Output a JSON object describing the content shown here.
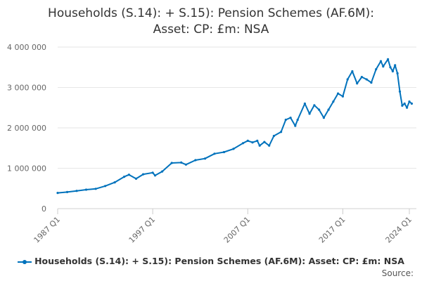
{
  "chart_data": {
    "type": "line",
    "title_lines": [
      "Households (S.14): + S.15): Pension Schemes (AF.6M):",
      "Asset: CP: £m: NSA"
    ],
    "xlabel": "",
    "ylabel": "",
    "x_ticks": [
      "1987 Q1",
      "1997 Q1",
      "2007 Q1",
      "2017 Q1",
      "2024 Q1"
    ],
    "y_ticks": [
      "0",
      "1 000 000",
      "2 000 000",
      "3 000 000",
      "4 000 000"
    ],
    "ylim": [
      0,
      4000000
    ],
    "xlim": [
      "1987 Q1",
      "2024 Q1"
    ],
    "grid": "horizontal",
    "legend_position": "bottom",
    "color": "#0072bc",
    "series": [
      {
        "name": "Households (S.14): + S.15): Pension Schemes (AF.6M): Asset: CP: £m: NSA",
        "points": [
          [
            "1987 Q1",
            390000
          ],
          [
            "1988 Q1",
            410000
          ],
          [
            "1989 Q1",
            440000
          ],
          [
            "1990 Q1",
            470000
          ],
          [
            "1991 Q1",
            490000
          ],
          [
            "1992 Q1",
            560000
          ],
          [
            "1993 Q1",
            650000
          ],
          [
            "1994 Q1",
            790000
          ],
          [
            "1994 Q3",
            840000
          ],
          [
            "1995 Q2",
            740000
          ],
          [
            "1996 Q1",
            850000
          ],
          [
            "1997 Q1",
            890000
          ],
          [
            "1997 Q2",
            820000
          ],
          [
            "1998 Q1",
            920000
          ],
          [
            "1999 Q1",
            1130000
          ],
          [
            "2000 Q1",
            1140000
          ],
          [
            "2000 Q3",
            1090000
          ],
          [
            "2001 Q3",
            1200000
          ],
          [
            "2002 Q3",
            1240000
          ],
          [
            "2003 Q3",
            1360000
          ],
          [
            "2004 Q3",
            1400000
          ],
          [
            "2005 Q3",
            1480000
          ],
          [
            "2006 Q3",
            1620000
          ],
          [
            "2007 Q1",
            1680000
          ],
          [
            "2007 Q3",
            1640000
          ],
          [
            "2008 Q1",
            1680000
          ],
          [
            "2008 Q2",
            1560000
          ],
          [
            "2008 Q4",
            1650000
          ],
          [
            "2009 Q2",
            1560000
          ],
          [
            "2009 Q4",
            1800000
          ],
          [
            "2010 Q3",
            1900000
          ],
          [
            "2011 Q1",
            2200000
          ],
          [
            "2011 Q3",
            2250000
          ],
          [
            "2012 Q1",
            2050000
          ],
          [
            "2012 Q2",
            2200000
          ],
          [
            "2013 Q1",
            2600000
          ],
          [
            "2013 Q3",
            2350000
          ],
          [
            "2014 Q1",
            2560000
          ],
          [
            "2014 Q3",
            2450000
          ],
          [
            "2015 Q1",
            2250000
          ],
          [
            "2015 Q3",
            2450000
          ],
          [
            "2016 Q1",
            2650000
          ],
          [
            "2016 Q3",
            2850000
          ],
          [
            "2017 Q1",
            2780000
          ],
          [
            "2017 Q3",
            3200000
          ],
          [
            "2018 Q1",
            3400000
          ],
          [
            "2018 Q3",
            3100000
          ],
          [
            "2019 Q1",
            3260000
          ],
          [
            "2019 Q3",
            3200000
          ],
          [
            "2020 Q1",
            3120000
          ],
          [
            "2020 Q3",
            3450000
          ],
          [
            "2021 Q1",
            3650000
          ],
          [
            "2021 Q2",
            3520000
          ],
          [
            "2021 Q4",
            3700000
          ],
          [
            "2022 Q1",
            3500000
          ],
          [
            "2022 Q2",
            3400000
          ],
          [
            "2022 Q3",
            3550000
          ],
          [
            "2022 Q4",
            3350000
          ],
          [
            "2023 Q1",
            2900000
          ],
          [
            "2023 Q2",
            2550000
          ],
          [
            "2023 Q3",
            2600000
          ],
          [
            "2023 Q4",
            2500000
          ],
          [
            "2024 Q1",
            2650000
          ],
          [
            "2024 Q2",
            2600000
          ]
        ]
      }
    ]
  },
  "source_label": "Source:"
}
